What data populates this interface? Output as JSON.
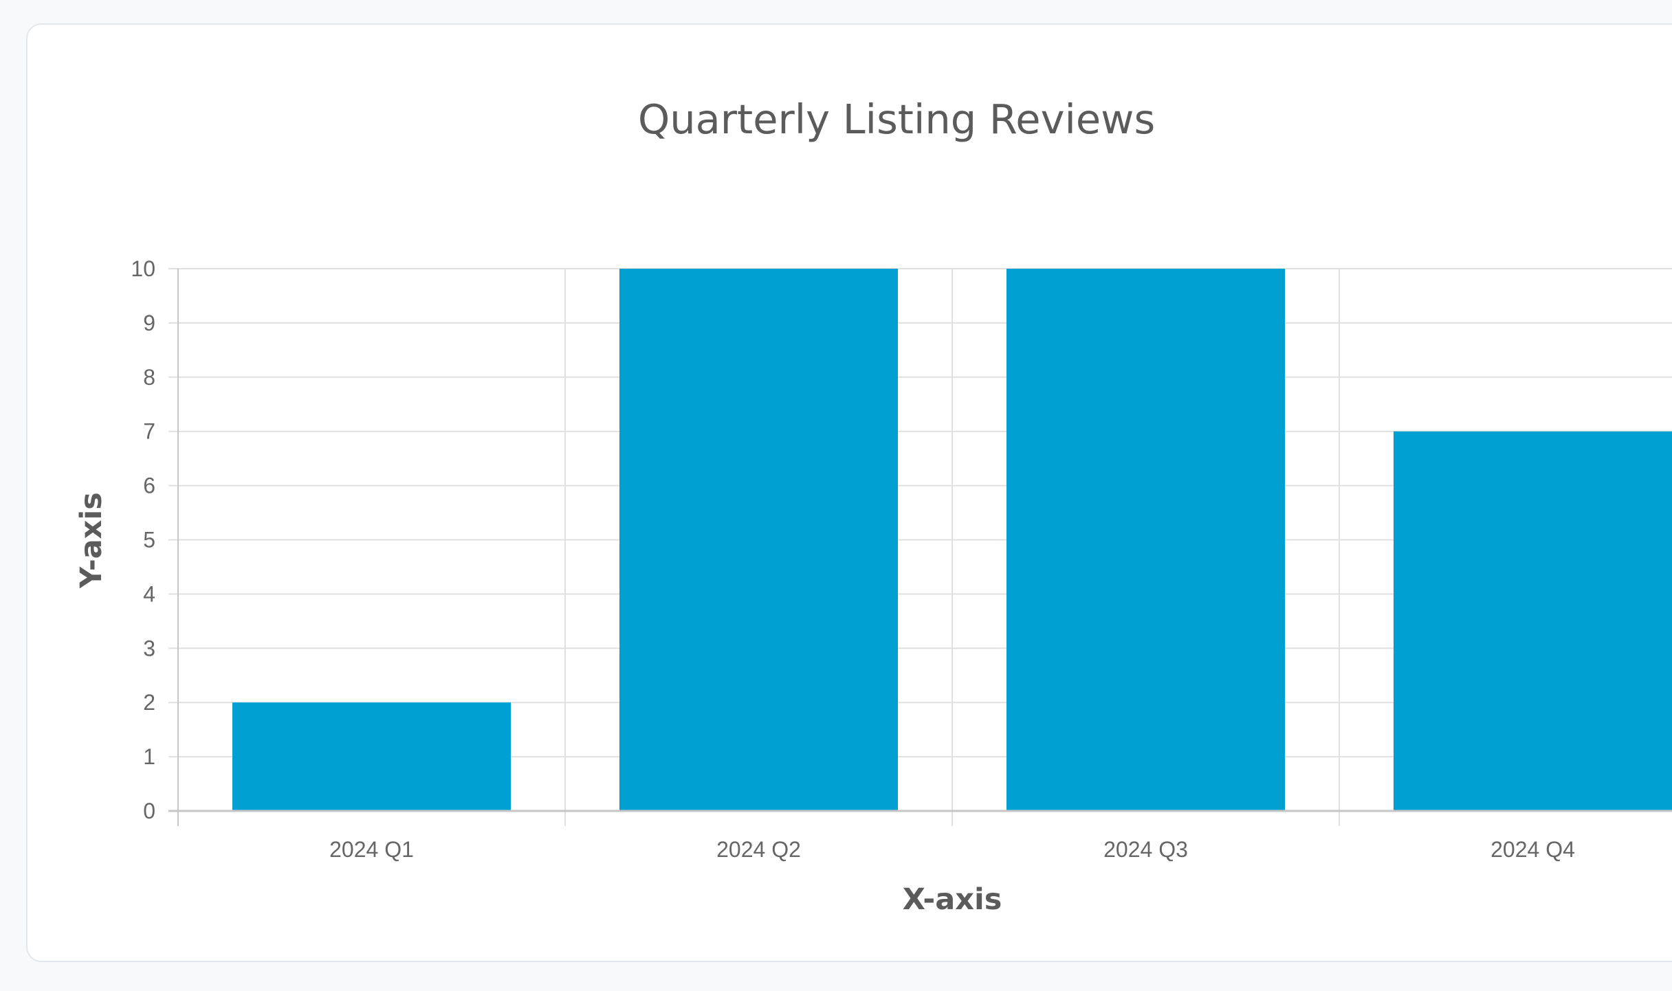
{
  "chart_data": {
    "type": "bar",
    "title": "Quarterly Listing Reviews",
    "xlabel": "X-axis",
    "ylabel": "Y-axis",
    "categories": [
      "2024 Q1",
      "2024 Q2",
      "2024 Q3",
      "2024 Q4"
    ],
    "values": [
      2,
      10,
      10,
      7
    ],
    "ylim": [
      0,
      10
    ],
    "yticks": [
      "0",
      "1",
      "2",
      "3",
      "4",
      "5",
      "6",
      "7",
      "8",
      "9",
      "10"
    ],
    "grid": true,
    "bar_color": "#00a0d2",
    "grid_color": "#e0e0e0",
    "axis_color": "#c6c6c6"
  }
}
